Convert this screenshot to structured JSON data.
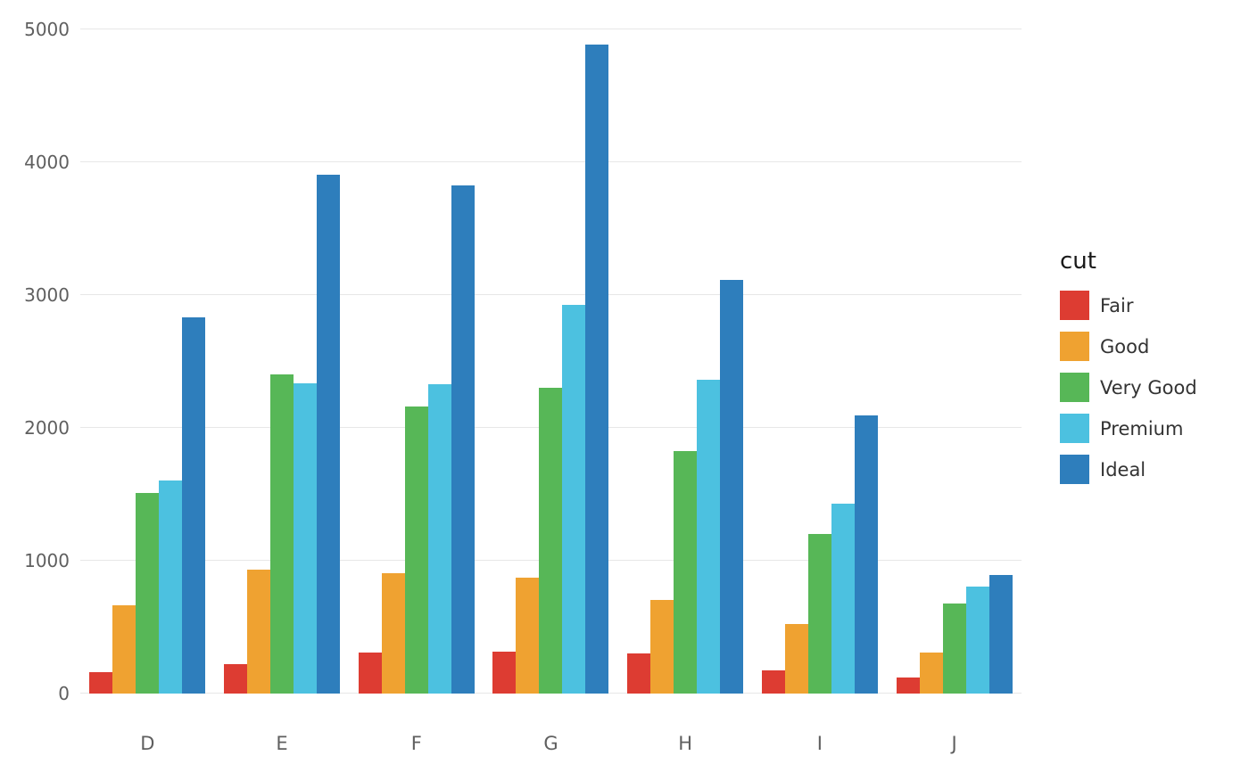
{
  "chart_data": {
    "type": "bar",
    "title": "",
    "xlabel": "",
    "ylabel": "",
    "categories": [
      "D",
      "E",
      "F",
      "G",
      "H",
      "I",
      "J"
    ],
    "series": [
      {
        "name": "Fair",
        "color": "#dd3c32",
        "values": [
          163,
          224,
          312,
          314,
          303,
          175,
          119
        ]
      },
      {
        "name": "Good",
        "color": "#efa231",
        "values": [
          662,
          933,
          909,
          871,
          702,
          522,
          307
        ]
      },
      {
        "name": "Very Good",
        "color": "#57b757",
        "values": [
          1513,
          2400,
          2164,
          2299,
          1824,
          1204,
          678
        ]
      },
      {
        "name": "Premium",
        "color": "#4cc1e0",
        "values": [
          1603,
          2337,
          2331,
          2924,
          2360,
          1428,
          808
        ]
      },
      {
        "name": "Ideal",
        "color": "#2e7ebc",
        "values": [
          2834,
          3903,
          3826,
          4884,
          3115,
          2093,
          896
        ]
      }
    ],
    "ylim": [
      0,
      5000
    ],
    "yticks": [
      0,
      1000,
      2000,
      3000,
      4000,
      5000
    ],
    "grid": true,
    "grid_color": "#e7e7e7",
    "legend": {
      "title": "cut",
      "position": "right"
    }
  }
}
